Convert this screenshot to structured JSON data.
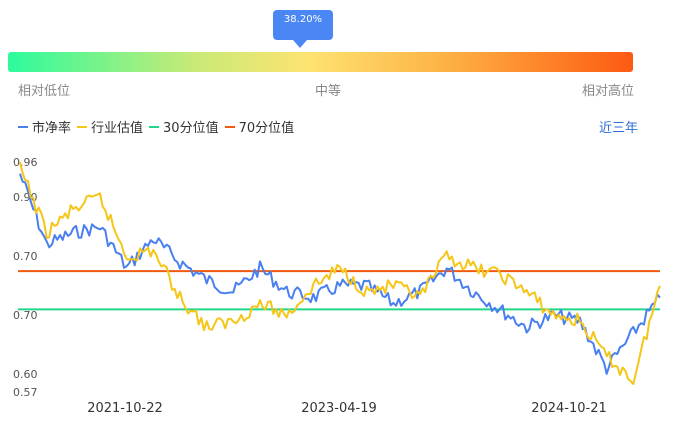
{
  "marker": {
    "percent_label": "38.20%",
    "value_pct": 38.2
  },
  "scale": {
    "low_label": "相对低位",
    "mid_label": "中等",
    "high_label": "相对高位"
  },
  "legend": [
    {
      "label": "市净率",
      "color": "#4a7ff0"
    },
    {
      "label": "行业估值",
      "color": "#f5c518"
    },
    {
      "label": "30分位值",
      "color": "#22d68a"
    },
    {
      "label": "70分位值",
      "color": "#f05a0f"
    }
  ],
  "range_button": "近三年",
  "chart_data": {
    "type": "line",
    "title": "",
    "xlabel": "",
    "ylabel": "",
    "ylim": [
      0.57,
      0.96
    ],
    "y_ticks": [
      "0.96",
      "0.90",
      "0.70",
      "0.70",
      "0.60",
      "0.57"
    ],
    "x_ticks": [
      "2021-10-22",
      "2023-04-19",
      "2024-10-21"
    ],
    "x": [
      "2021-04",
      "2021-06",
      "2021-08",
      "2021-10",
      "2021-12",
      "2022-02",
      "2022-04",
      "2022-06",
      "2022-08",
      "2022-10",
      "2022-12",
      "2023-02",
      "2023-04",
      "2023-06",
      "2023-08",
      "2023-10",
      "2023-12",
      "2024-02",
      "2024-04",
      "2024-06",
      "2024-08",
      "2024-10",
      "2024-12",
      "2025-02",
      "2025-04"
    ],
    "series": [
      {
        "name": "市净率",
        "color": "#4a7ff0",
        "values": [
          0.94,
          0.82,
          0.84,
          0.85,
          0.78,
          0.83,
          0.79,
          0.76,
          0.74,
          0.78,
          0.74,
          0.73,
          0.75,
          0.75,
          0.72,
          0.74,
          0.78,
          0.74,
          0.71,
          0.68,
          0.7,
          0.69,
          0.61,
          0.67,
          0.73
        ]
      },
      {
        "name": "行业估值",
        "color": "#f5c518",
        "values": [
          0.95,
          0.84,
          0.88,
          0.9,
          0.8,
          0.81,
          0.73,
          0.68,
          0.69,
          0.72,
          0.7,
          0.75,
          0.78,
          0.74,
          0.75,
          0.73,
          0.8,
          0.78,
          0.77,
          0.74,
          0.7,
          0.69,
          0.63,
          0.59,
          0.75
        ]
      }
    ],
    "reference_lines": [
      {
        "name": "30分位值",
        "value": 0.71,
        "color": "#22d68a"
      },
      {
        "name": "70分位值",
        "value": 0.775,
        "color": "#f05a0f"
      }
    ],
    "grid": false,
    "legend_position": "top-left"
  }
}
